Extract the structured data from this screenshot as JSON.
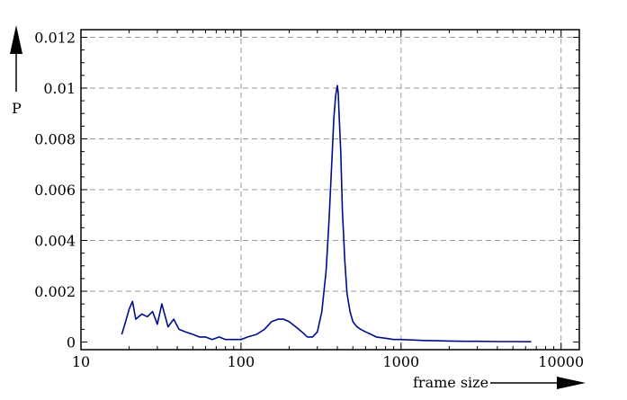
{
  "chart_data": {
    "type": "line",
    "title": "",
    "xlabel": "frame size",
    "ylabel": "P",
    "x_scale": "log",
    "xlim": [
      10,
      13000
    ],
    "ylim": [
      -0.0003,
      0.0123
    ],
    "x_ticks": [
      10,
      100,
      1000,
      10000
    ],
    "x_tick_labels": [
      "10",
      "100",
      "1000",
      "10000"
    ],
    "y_ticks": [
      0,
      0.002,
      0.004,
      0.006,
      0.008,
      0.01,
      0.012
    ],
    "y_tick_labels": [
      "0",
      "0.002",
      "0.004",
      "0.006",
      "0.008",
      "0.01",
      "0.012"
    ],
    "grid": true,
    "legend": "none",
    "line_color": "#000c8c",
    "series": [
      {
        "name": "",
        "x": [
          18,
          19,
          20,
          21,
          22,
          24,
          26,
          28,
          30,
          32,
          35,
          38,
          41,
          45,
          50,
          55,
          60,
          66,
          73,
          80,
          90,
          100,
          110,
          125,
          140,
          155,
          170,
          185,
          200,
          220,
          240,
          260,
          280,
          300,
          320,
          340,
          355,
          370,
          380,
          390,
          400,
          405,
          410,
          420,
          430,
          445,
          460,
          480,
          500,
          530,
          560,
          600,
          650,
          700,
          800,
          900,
          1000,
          1200,
          1400,
          1700,
          2000,
          2500,
          3000,
          4000,
          5000,
          6500
        ],
        "y": [
          0.0003,
          0.0008,
          0.0013,
          0.0016,
          0.0009,
          0.0011,
          0.001,
          0.0012,
          0.0007,
          0.0015,
          0.0006,
          0.0009,
          0.0005,
          0.0004,
          0.0003,
          0.0002,
          0.0002,
          0.0001,
          0.0002,
          0.0001,
          0.0001,
          0.0001,
          0.0002,
          0.0003,
          0.0005,
          0.0008,
          0.0009,
          0.0009,
          0.0008,
          0.0006,
          0.0004,
          0.0002,
          0.0002,
          0.0004,
          0.0012,
          0.0028,
          0.0048,
          0.0072,
          0.0088,
          0.0097,
          0.0101,
          0.0098,
          0.009,
          0.0075,
          0.0052,
          0.0032,
          0.0019,
          0.0012,
          0.0008,
          0.0006,
          0.0005,
          0.0004,
          0.0003,
          0.0002,
          0.00015,
          0.0001,
          0.0001,
          8e-05,
          6e-05,
          5e-05,
          4e-05,
          3e-05,
          3e-05,
          2e-05,
          2e-05,
          1e-05
        ]
      }
    ]
  }
}
